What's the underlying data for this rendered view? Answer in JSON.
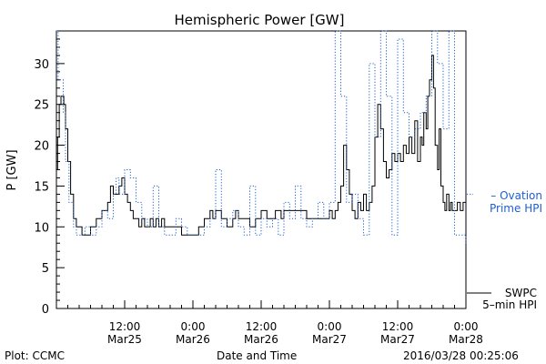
{
  "chart_data": {
    "type": "line",
    "title": "Hemispheric Power [GW]",
    "ylabel": "P [GW]",
    "xlabel": "Date and Time",
    "ylim": [
      0,
      34
    ],
    "y_ticks": [
      0,
      5,
      10,
      15,
      20,
      25,
      30
    ],
    "x_ticks": [
      {
        "t": 12,
        "top": "12:00",
        "bottom": "Mar25"
      },
      {
        "t": 24,
        "top": "0:00",
        "bottom": "Mar26"
      },
      {
        "t": 36,
        "top": "12:00",
        "bottom": "Mar26"
      },
      {
        "t": 48,
        "top": "0:00",
        "bottom": "Mar27"
      },
      {
        "t": 60,
        "top": "12:00",
        "bottom": "Mar27"
      },
      {
        "t": 72,
        "top": "0:00",
        "bottom": "Mar28"
      }
    ],
    "series": [
      {
        "name": "SWPC 5-min HPI",
        "label_lines": [
          "SWPC",
          "5–min HPI"
        ],
        "color": "#000000",
        "style": "solid",
        "x": [
          0,
          0.2,
          0.5,
          0.8,
          1.0,
          1.3,
          1.6,
          2.0,
          2.5,
          3.0,
          3.5,
          4.0,
          4.5,
          5.0,
          5.5,
          6,
          7,
          8,
          9,
          9.5,
          10,
          10.5,
          11,
          11.5,
          12,
          12.5,
          13,
          13.5,
          14,
          14.5,
          15,
          15.5,
          16,
          16.5,
          17,
          17.5,
          18,
          18.5,
          19,
          20,
          21,
          22,
          23,
          24,
          25,
          25.5,
          26,
          26.5,
          27,
          27.5,
          28,
          29,
          30,
          30.5,
          31,
          31.5,
          32,
          33,
          34,
          35,
          35.5,
          36,
          37,
          38,
          38.5,
          39,
          39.5,
          40,
          41,
          42,
          43,
          44,
          45,
          46,
          47,
          48,
          48.5,
          49,
          49.5,
          50,
          50.5,
          51,
          51.5,
          52,
          52.5,
          53,
          53.5,
          54,
          54.5,
          55,
          55.5,
          56,
          56.5,
          57,
          57.5,
          58,
          58.5,
          59,
          59.5,
          60,
          60.5,
          61,
          61.5,
          62,
          62.5,
          63,
          63.5,
          64,
          64.3,
          64.6,
          65,
          65.3,
          65.6,
          66,
          66.3,
          66.6,
          67,
          67.3,
          67.6,
          68,
          68.3,
          68.6,
          69,
          69.3,
          69.6,
          70,
          70.5,
          71,
          71.5,
          72
        ],
        "y": [
          17,
          21,
          25,
          26,
          26,
          25,
          22,
          18,
          14,
          11,
          10,
          10,
          9,
          9,
          9,
          10,
          11,
          12,
          13,
          15,
          14,
          14,
          15,
          16,
          14,
          13,
          12,
          11,
          11,
          10,
          11,
          10,
          10,
          11,
          10,
          11,
          10,
          11,
          10,
          10,
          10,
          9,
          9,
          9,
          10,
          10,
          11,
          11,
          12,
          11,
          12,
          11,
          10,
          10,
          11,
          12,
          11,
          11,
          10,
          11,
          11,
          12,
          11,
          11,
          12,
          12,
          11,
          12,
          12,
          12,
          12,
          11,
          11,
          11,
          11,
          12,
          11,
          12,
          13,
          15,
          20,
          17,
          14,
          12,
          11,
          13,
          12,
          14,
          12,
          13,
          15,
          21,
          25,
          22,
          18,
          16,
          17,
          19,
          18,
          19,
          18,
          20,
          19,
          21,
          19,
          23,
          18,
          21,
          20,
          24,
          22,
          26,
          28,
          31,
          27,
          20,
          17,
          22,
          15,
          13,
          12,
          14,
          12,
          13,
          12,
          12,
          13,
          12,
          13,
          13
        ],
        "values_clipped_at_bottom": false
      },
      {
        "name": "Ovation Prime HPI",
        "label_lines": [
          "– Ovation",
          "Prime HPI"
        ],
        "color": "#1f5fcf",
        "style": "dotted",
        "x": [
          0,
          0.3,
          0.6,
          1.2,
          1.6,
          2.2,
          3.0,
          3.5,
          4.2,
          5.0,
          6,
          7,
          8,
          9,
          10,
          10.5,
          11,
          12,
          13,
          14,
          15,
          16,
          17,
          18,
          19,
          20,
          21,
          22,
          23,
          24,
          25,
          26,
          27,
          28,
          29,
          30,
          31,
          32,
          33,
          34,
          35,
          36,
          37,
          38,
          39,
          40,
          41,
          42,
          43,
          44,
          45,
          46,
          47,
          48,
          49,
          50,
          51,
          52,
          53,
          54,
          55,
          56,
          57,
          58,
          59,
          60,
          61,
          62,
          63,
          64,
          65,
          66,
          67,
          68,
          69,
          70,
          71,
          72
        ],
        "y": [
          34,
          28,
          28,
          24,
          18,
          13,
          10,
          9,
          9,
          10,
          9,
          10,
          12,
          11,
          14,
          16,
          14,
          17,
          16,
          13,
          11,
          10,
          15,
          10,
          9,
          9,
          11,
          10,
          9,
          9,
          9,
          10,
          11,
          17,
          10,
          11,
          12,
          10,
          9,
          15,
          9,
          11,
          10,
          11,
          9,
          13,
          11,
          15,
          11,
          10,
          11,
          13,
          11,
          13,
          34,
          26,
          13,
          14,
          11,
          9,
          30,
          21,
          34,
          26,
          9,
          33,
          24,
          21,
          22,
          24,
          26,
          34,
          30,
          22,
          34,
          9,
          9,
          8
        ],
        "note": "values above 34 are clipped at the top of the plot"
      }
    ]
  },
  "footer": {
    "plot_credit": "Plot: CCMC",
    "timestamp": "2016/03/28 00:25:06"
  }
}
